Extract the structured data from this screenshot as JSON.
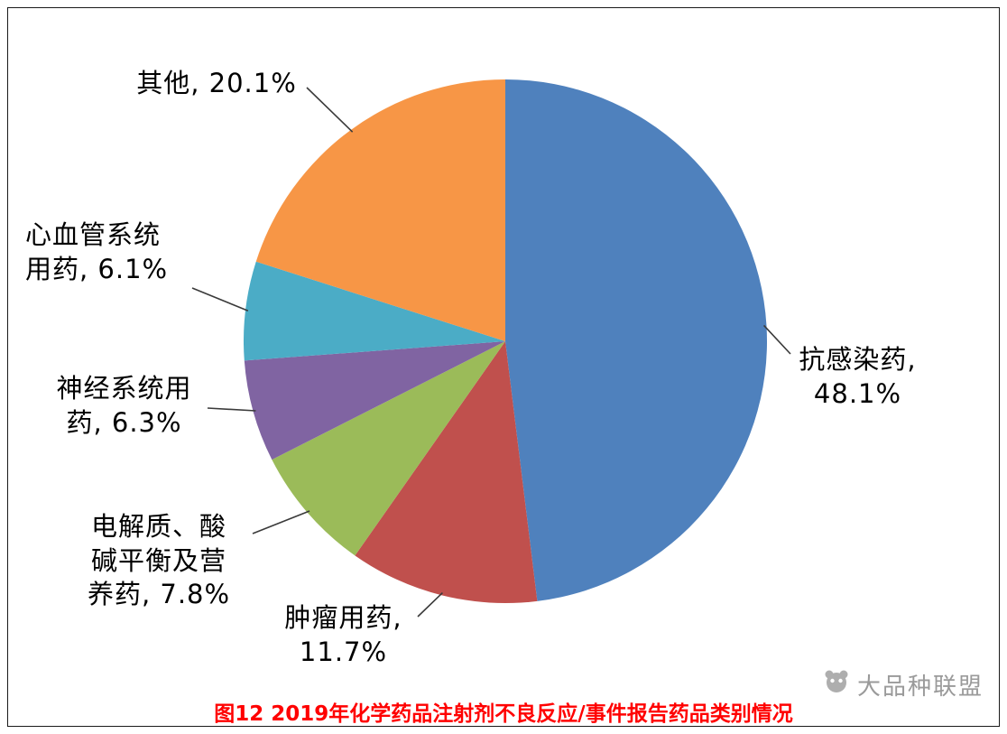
{
  "page": {
    "caption": "图12 2019年化学药品注射剂不良反应/事件报告药品类别情况",
    "caption_color": "#ff0000",
    "watermark_text": "大品种联盟"
  },
  "chart_data": {
    "type": "pie",
    "title": "图12 2019年化学药品注射剂不良反应/事件报告药品类别情况",
    "start_angle_deg": 0,
    "direction": "clockwise",
    "legend": "none",
    "labels_position": "outside-with-leader-lines",
    "slices": [
      {
        "label": "抗感染药",
        "value": 48.1,
        "color": "#4F81BD",
        "label_text": "抗感染药,\n48.1%"
      },
      {
        "label": "肿瘤用药",
        "value": 11.7,
        "color": "#C0504D",
        "label_text": "肿瘤用药,\n11.7%"
      },
      {
        "label": "电解质、酸碱平衡及营养药",
        "value": 7.8,
        "color": "#9BBB59",
        "label_text": "电解质、酸\n碱平衡及营\n养药, 7.8%"
      },
      {
        "label": "神经系统用药",
        "value": 6.3,
        "color": "#8064A2",
        "label_text": "神经系统用\n药, 6.3%"
      },
      {
        "label": "心血管系统用药",
        "value": 6.1,
        "color": "#4BACC6",
        "label_text": "心血管系统\n用药, 6.1%"
      },
      {
        "label": "其他",
        "value": 20.1,
        "color": "#F79646",
        "label_text": "其他, 20.1%"
      }
    ]
  }
}
